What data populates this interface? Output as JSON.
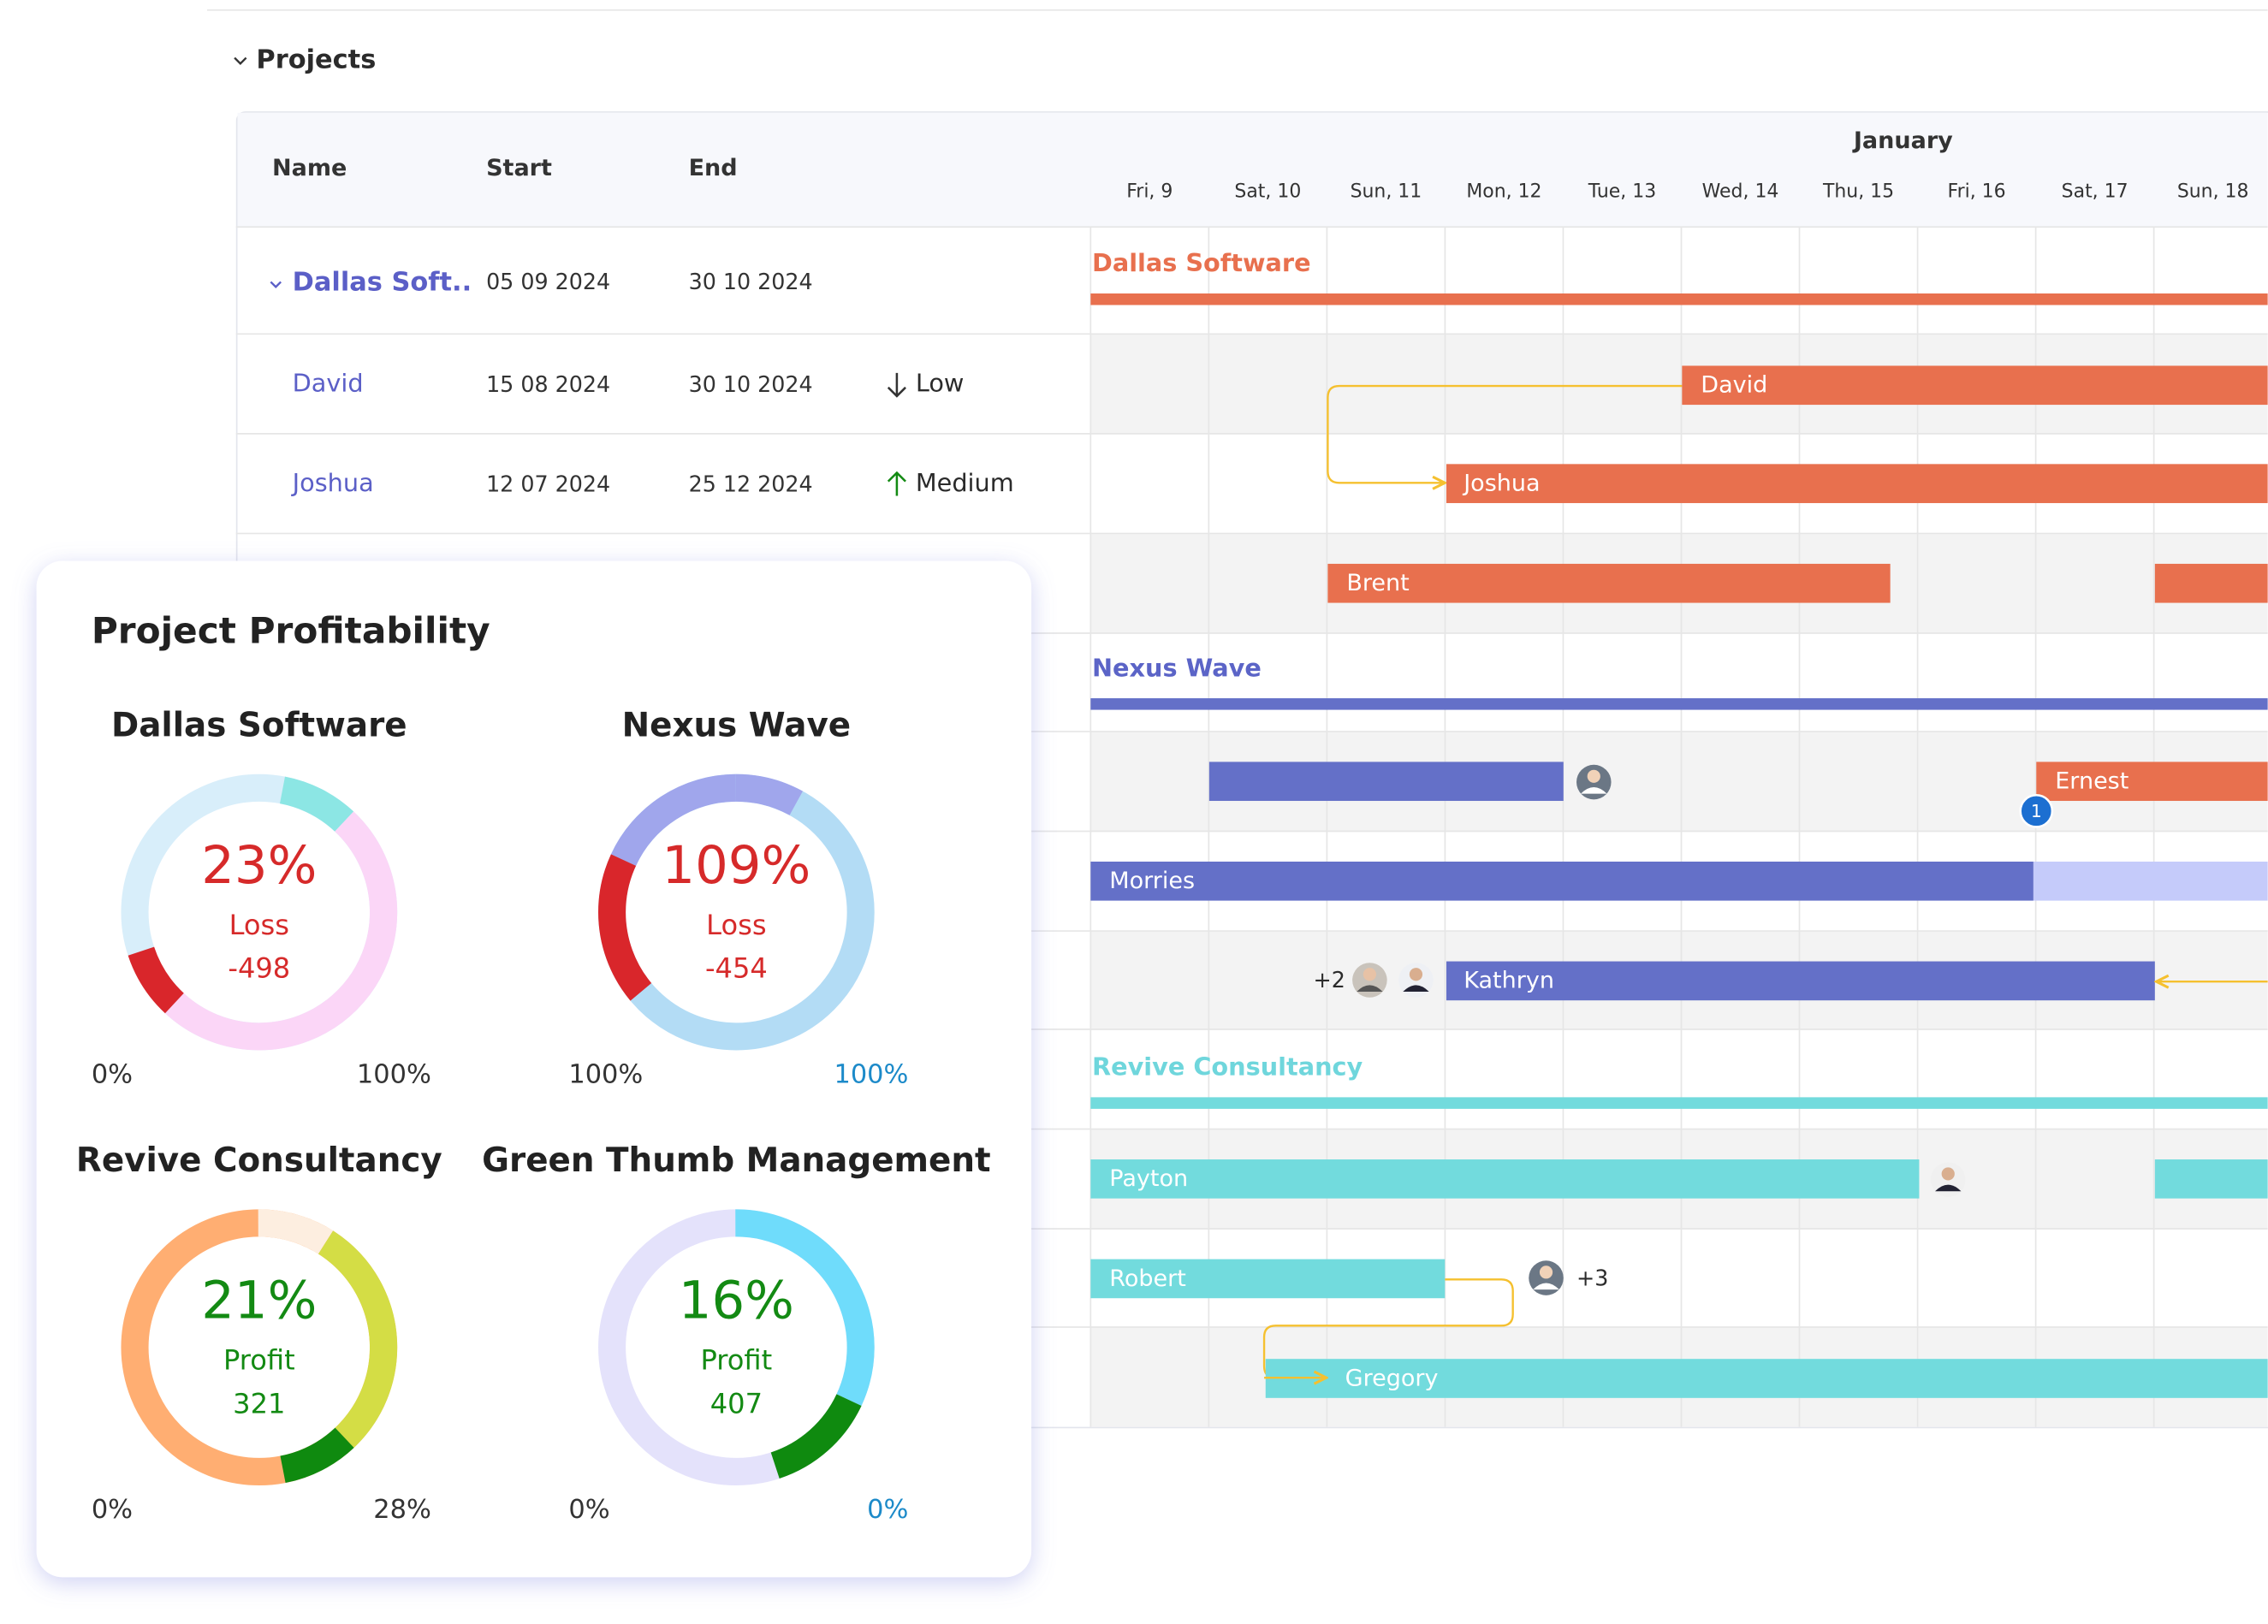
{
  "header": {
    "section": "Projects"
  },
  "table": {
    "columns": [
      "Name",
      "Start",
      "End"
    ],
    "month": "January",
    "days": [
      "Fri, 9",
      "Sat, 10",
      "Sun, 11",
      "Mon, 12",
      "Tue, 13",
      "Wed, 14",
      "Thu, 15",
      "Fri, 16",
      "Sat, 17",
      "Sun, 18"
    ],
    "rows": [
      [
        "Dallas Soft..",
        "05 09 2024",
        "30 10 2024"
      ],
      [
        "David",
        "15 08 2024",
        "30 10 2024",
        "Low"
      ],
      [
        "Joshua",
        "12 07 2024",
        "25 12 2024",
        "Medium"
      ]
    ]
  },
  "gantt": {
    "groups": [
      "Dallas Software",
      "Nexus Wave",
      "Revive Consultancy"
    ],
    "tasks": [
      "David",
      "Joshua",
      "Brent",
      "Ernest",
      "Morries",
      "Kathryn",
      "Payton",
      "Robert",
      "Gregory"
    ],
    "badges": [
      "1",
      "+2",
      "+3"
    ]
  },
  "panel": {
    "title": "Project Profitability",
    "cards": [
      {
        "name": "Dallas Software",
        "percent": "23%",
        "status": "Loss",
        "amount": "-498",
        "min": "0%",
        "max": "100%"
      },
      {
        "name": "Nexus Wave",
        "percent": "109%",
        "status": "Loss",
        "amount": "-454",
        "min": "100%",
        "max": "100%"
      },
      {
        "name": "Revive Consultancy",
        "percent": "21%",
        "status": "Profit",
        "amount": "321",
        "min": "0%",
        "max": "28%"
      },
      {
        "name": "Green Thumb Management",
        "percent": "16%",
        "status": "Profit",
        "amount": "407",
        "min": "0%",
        "max": "0%"
      }
    ]
  }
}
